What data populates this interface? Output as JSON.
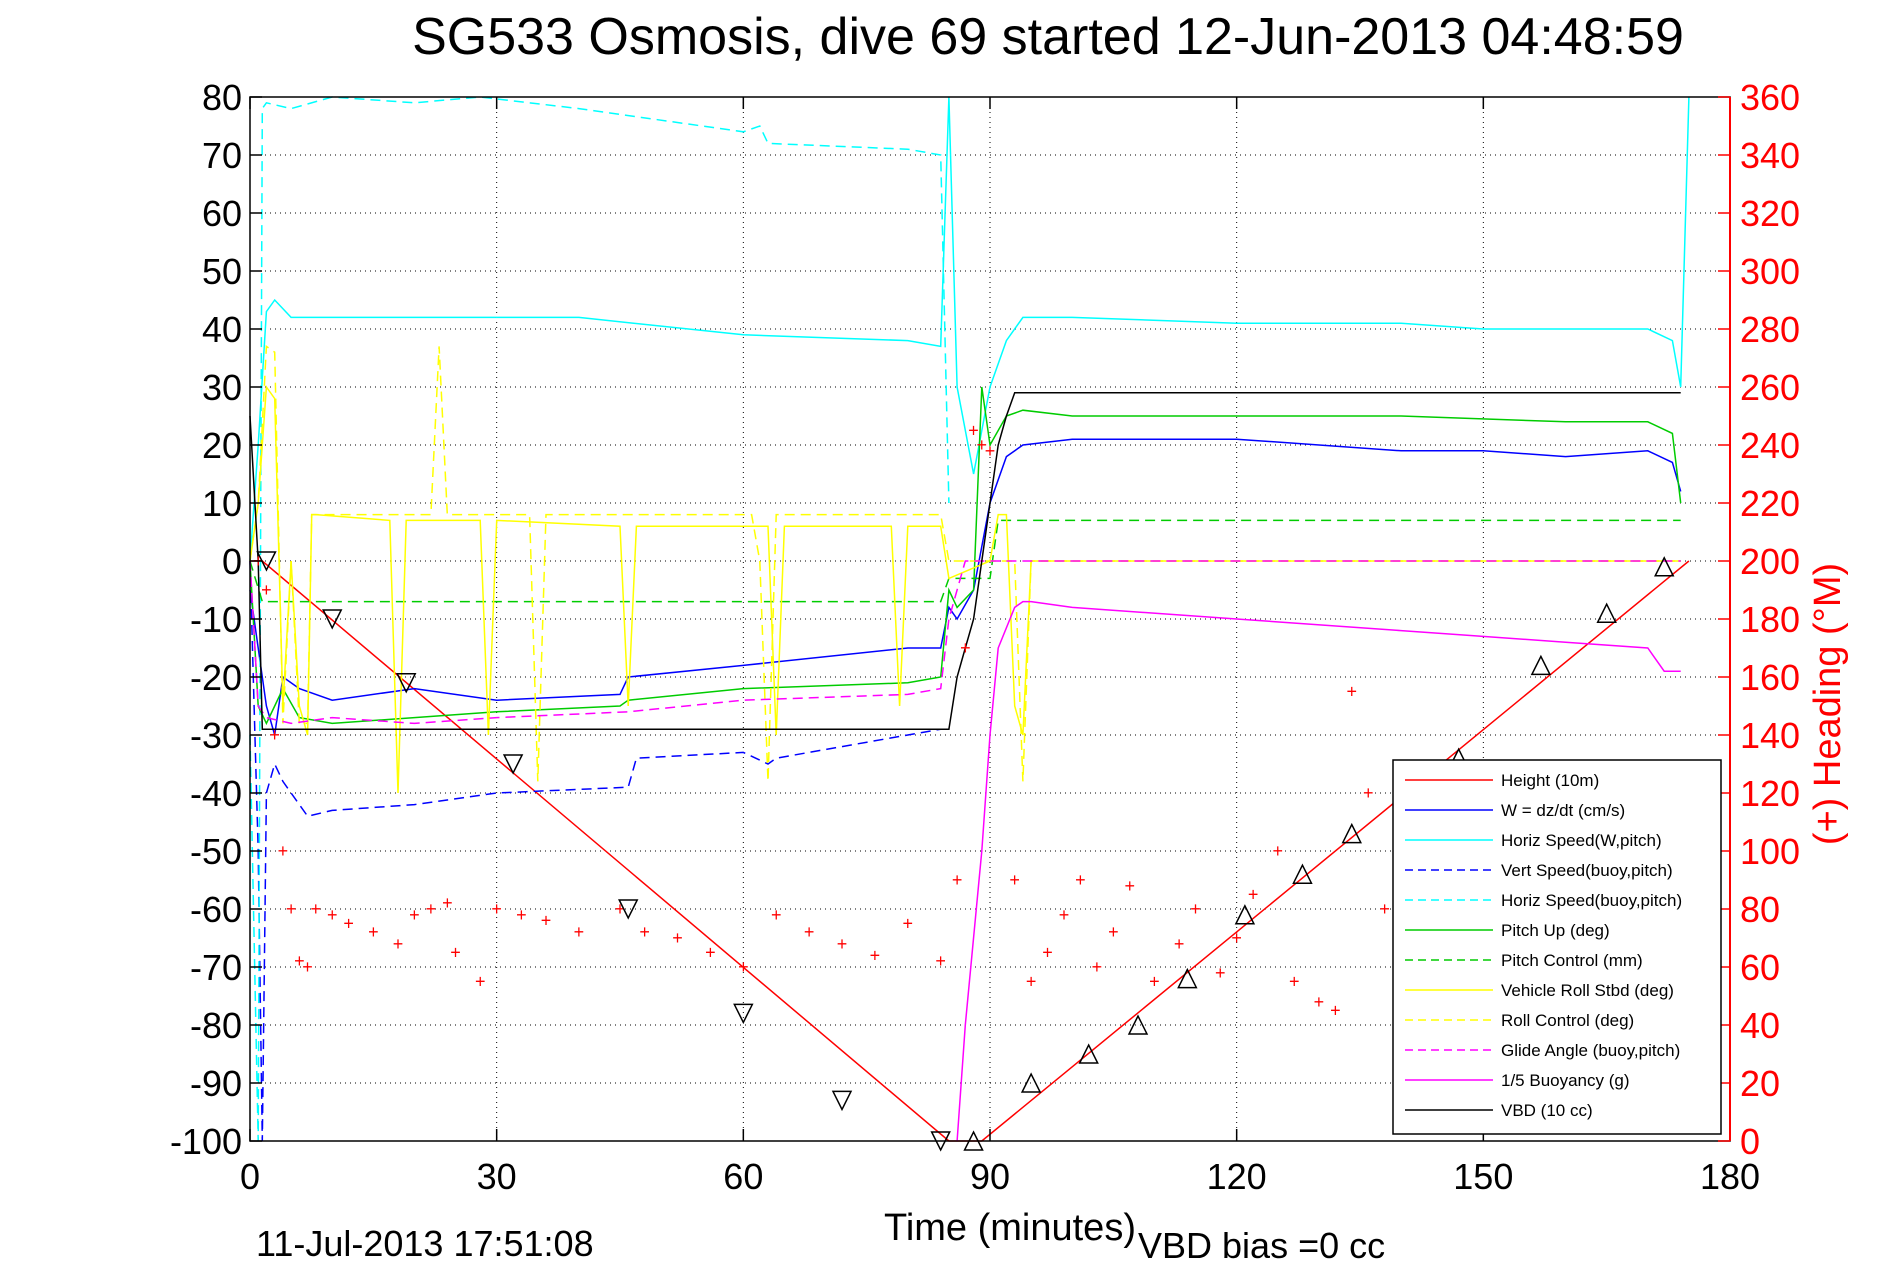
{
  "chart_data": {
    "type": "line",
    "title": "SG533 Osmosis, dive 69 started 12-Jun-2013 04:48:59",
    "xlabel": "Time (minutes)",
    "ylabel_right": "(+) Heading (°M)",
    "xlim": [
      0,
      180
    ],
    "ylim": [
      -100,
      80
    ],
    "ylim_right": [
      0,
      360
    ],
    "x_ticks": [
      0,
      30,
      60,
      90,
      120,
      150,
      180
    ],
    "x_tick_labels": [
      "0",
      "30",
      "60",
      "90",
      "120",
      "150",
      "180"
    ],
    "y_ticks": [
      80,
      70,
      60,
      50,
      40,
      30,
      20,
      10,
      0,
      -10,
      -20,
      -30,
      -40,
      -50,
      -60,
      -70,
      -80,
      -90,
      -100
    ],
    "y_tick_labels": [
      "80",
      "70",
      "60",
      "50",
      "40",
      "30",
      "20",
      "10",
      "0",
      "-10",
      "-20",
      "-30",
      "-40",
      "-50",
      "-60",
      "-70",
      "-80",
      "-90",
      "-100"
    ],
    "y_right_ticks": [
      360,
      340,
      320,
      300,
      280,
      260,
      240,
      220,
      200,
      180,
      160,
      140,
      120,
      100,
      80,
      60,
      40,
      20,
      0
    ],
    "y_right_tick_labels": [
      "360",
      "340",
      "320",
      "300",
      "280",
      "260",
      "240",
      "220",
      "200",
      "180",
      "160",
      "140",
      "120",
      "100",
      "80",
      "60",
      "40",
      "20",
      "0"
    ],
    "grid": true,
    "legend_position": "bottom-right",
    "series": [
      {
        "name": "Height (10m)",
        "color": "#ff0000",
        "style": "solid",
        "x": [
          0,
          1.5,
          85,
          86,
          87,
          88,
          89,
          175
        ],
        "y": [
          0,
          0,
          -100,
          -100,
          -100,
          -100,
          -100,
          0
        ]
      },
      {
        "name": "W = dz/dt (cm/s)",
        "color": "#0000ff",
        "style": "solid",
        "x": [
          0,
          1,
          2,
          3,
          4,
          6,
          10,
          20,
          30,
          45,
          46,
          60,
          80,
          84,
          85,
          86,
          88,
          90,
          92,
          94,
          100,
          120,
          140,
          150,
          160,
          170,
          173,
          174
        ],
        "y": [
          -5,
          -15,
          -25,
          -30,
          -20,
          -22,
          -24,
          -22,
          -24,
          -23,
          -20,
          -18,
          -15,
          -15,
          -8,
          -10,
          -5,
          10,
          18,
          20,
          21,
          21,
          19,
          19,
          18,
          19,
          17,
          12
        ]
      },
      {
        "name": "Horiz Speed(W,pitch)",
        "color": "#00ffff",
        "style": "solid",
        "x": [
          0,
          1,
          2,
          3,
          5,
          10,
          20,
          30,
          40,
          60,
          80,
          84,
          85,
          86,
          88,
          90,
          92,
          94,
          100,
          120,
          140,
          150,
          160,
          170,
          173,
          174,
          175
        ],
        "y": [
          0,
          20,
          43,
          45,
          42,
          42,
          42,
          42,
          42,
          39,
          38,
          37,
          80,
          30,
          15,
          30,
          38,
          42,
          42,
          41,
          41,
          40,
          40,
          40,
          38,
          30,
          80
        ]
      },
      {
        "name": "Vert Speed(buoy,pitch)",
        "color": "#0000ff",
        "style": "dashed",
        "x": [
          0,
          1,
          1.5,
          2,
          3,
          4,
          6,
          7,
          10,
          20,
          30,
          46,
          47,
          60,
          63,
          64,
          80,
          84
        ],
        "y": [
          0,
          -50,
          -100,
          -40,
          -35,
          -38,
          -42,
          -44,
          -43,
          -42,
          -40,
          -39,
          -34,
          -33,
          -35,
          -34,
          -30,
          -29
        ]
      },
      {
        "name": "Horiz Speed(buoy,pitch)",
        "color": "#00ffff",
        "style": "dashed",
        "x": [
          0,
          1,
          1.5,
          2,
          5,
          10,
          20,
          28,
          40,
          60,
          62,
          63,
          80,
          84,
          85
        ],
        "y": [
          -30,
          -100,
          78,
          79,
          78,
          80,
          79,
          80,
          78,
          74,
          75,
          72,
          71,
          70,
          10
        ]
      },
      {
        "name": "Pitch Up (deg)",
        "color": "#00cc00",
        "style": "solid",
        "x": [
          0,
          1,
          2,
          3,
          4,
          6,
          10,
          20,
          30,
          45,
          46,
          60,
          80,
          84,
          85,
          86,
          88,
          89,
          90,
          92,
          94,
          100,
          120,
          140,
          160,
          170,
          173,
          174
        ],
        "y": [
          0,
          -25,
          -28,
          -25,
          -22,
          -27,
          -28,
          -27,
          -26,
          -25,
          -24,
          -22,
          -21,
          -20,
          -5,
          -8,
          -5,
          30,
          20,
          25,
          26,
          25,
          25,
          25,
          24,
          24,
          22,
          10
        ]
      },
      {
        "name": "Pitch Control (mm)",
        "color": "#00cc00",
        "style": "dashed",
        "x": [
          0,
          1.5,
          2,
          84,
          85,
          90,
          91,
          174
        ],
        "y": [
          0,
          -7,
          -7,
          -7,
          -3,
          -3,
          7,
          7
        ]
      },
      {
        "name": "Vehicle Roll Stbd (deg)",
        "color": "#ffff00",
        "style": "solid",
        "x": [
          0,
          1,
          2,
          3,
          4,
          5,
          6,
          7,
          7.5,
          8,
          17,
          18,
          19,
          28,
          29,
          30,
          45,
          46,
          47,
          63,
          64,
          65,
          78,
          79,
          80,
          84,
          85,
          90,
          91,
          92,
          93,
          94,
          95,
          174
        ],
        "y": [
          0,
          10,
          30,
          28,
          -25,
          0,
          -25,
          -30,
          8,
          8,
          7,
          -40,
          7,
          7,
          -30,
          7,
          6,
          -25,
          6,
          6,
          -30,
          6,
          6,
          -25,
          6,
          6,
          -3,
          0,
          8,
          8,
          -25,
          -30,
          0,
          0
        ]
      },
      {
        "name": "Roll Control (deg)",
        "color": "#ffff00",
        "style": "dashed",
        "x": [
          0,
          1,
          2,
          3,
          4,
          5,
          6,
          7,
          7.5,
          8,
          22,
          23,
          24,
          25,
          34,
          35,
          36,
          60,
          61,
          62,
          63,
          64,
          65,
          80,
          84,
          85,
          90,
          93,
          94,
          95,
          96,
          97,
          174
        ],
        "y": [
          0,
          10,
          37,
          36,
          -28,
          0,
          -28,
          -28,
          8,
          8,
          8,
          37,
          8,
          8,
          8,
          -38,
          8,
          8,
          8,
          0,
          -38,
          8,
          8,
          8,
          8,
          0,
          0,
          0,
          -38,
          0,
          0,
          0,
          0
        ]
      },
      {
        "name": "Glide Angle (buoy,pitch)",
        "color": "#ff00ff",
        "style": "dashed",
        "x": [
          0,
          1,
          2,
          5,
          10,
          20,
          30,
          46,
          60,
          80,
          84,
          85,
          86,
          87,
          88,
          90,
          174
        ],
        "y": [
          0,
          -25,
          -27,
          -28,
          -27,
          -28,
          -27,
          -26,
          -24,
          -23,
          -22,
          -10,
          -5,
          0,
          0,
          0,
          0
        ]
      },
      {
        "name": "1/5 Buoyancy (g)",
        "color": "#ff00ff",
        "style": "solid",
        "x": [
          86,
          87,
          89,
          90,
          91,
          93,
          94,
          95,
          100,
          120,
          140,
          160,
          170,
          172,
          174
        ],
        "y": [
          -100,
          -80,
          -50,
          -30,
          -15,
          -8,
          -7,
          -7,
          -8,
          -10,
          -12,
          -14,
          -15,
          -19,
          -19
        ]
      },
      {
        "name": "VBD (10 cc)",
        "color": "#000000",
        "style": "solid",
        "x": [
          0,
          1,
          1.5,
          2,
          84,
          85,
          86,
          87,
          88,
          89,
          90,
          91,
          92,
          93,
          94,
          95,
          174
        ],
        "y": [
          25,
          0,
          -29,
          -29,
          -29,
          -29,
          -20,
          -15,
          -10,
          0,
          10,
          20,
          25,
          29,
          29,
          29,
          29
        ]
      }
    ],
    "heading_series": {
      "name": "(+) Heading",
      "color": "#ff0000",
      "marker": "+",
      "axis": "right",
      "x": [
        1,
        2,
        3,
        4,
        5,
        6,
        7,
        8,
        10,
        12,
        15,
        18,
        20,
        22,
        24,
        25,
        28,
        30,
        33,
        36,
        40,
        45,
        48,
        52,
        56,
        60,
        64,
        68,
        72,
        76,
        80,
        84,
        86,
        87,
        88,
        89,
        90,
        93,
        95,
        97,
        99,
        101,
        103,
        105,
        107,
        110,
        113,
        115,
        118,
        120,
        122,
        125,
        127,
        130,
        132,
        134,
        136,
        138,
        140,
        145,
        150,
        155,
        160,
        165,
        170,
        173
      ],
      "y": [
        200,
        190,
        140,
        100,
        80,
        62,
        60,
        80,
        78,
        75,
        72,
        68,
        78,
        80,
        82,
        65,
        55,
        80,
        78,
        76,
        72,
        80,
        72,
        70,
        65,
        60,
        78,
        72,
        68,
        64,
        75,
        62,
        90,
        170,
        245,
        240,
        238,
        90,
        55,
        65,
        78,
        90,
        60,
        72,
        88,
        55,
        68,
        80,
        58,
        70,
        85,
        100,
        55,
        48,
        45,
        155,
        120,
        80,
        47,
        45,
        45,
        45,
        45,
        45,
        45,
        45
      ]
    },
    "markers": [
      {
        "type": "triangle-down",
        "x": [
          2,
          10,
          19,
          32,
          46,
          60,
          72,
          84
        ],
        "y": [
          0,
          -10,
          -21,
          -35,
          -60,
          -78,
          -93,
          -100
        ]
      },
      {
        "type": "triangle-up",
        "x": [
          88,
          95,
          102,
          108,
          114,
          121,
          128,
          134,
          141,
          147,
          157,
          165,
          172
        ],
        "y": [
          -100,
          -90,
          -85,
          -80,
          -72,
          -61,
          -54,
          -47,
          -40,
          -34,
          -18,
          -9,
          -1
        ]
      }
    ]
  },
  "footer": {
    "timestamp": "11-Jul-2013 17:51:08",
    "vbd_bias": "VBD bias =0 cc"
  }
}
